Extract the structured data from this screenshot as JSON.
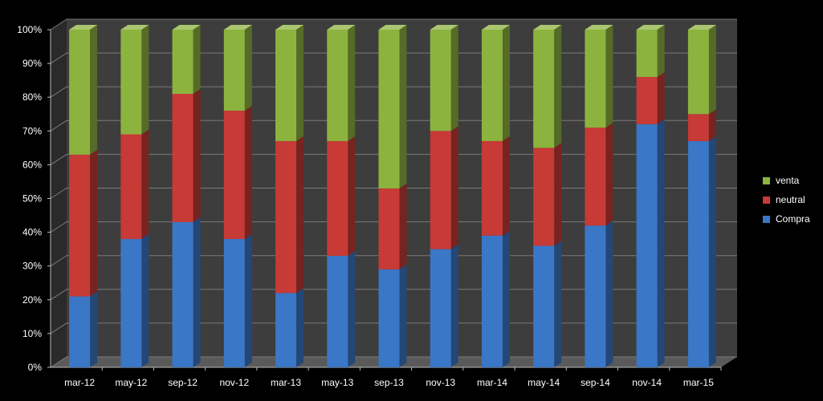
{
  "chart_data": {
    "type": "bar",
    "stacked": true,
    "percent": true,
    "categories": [
      "mar-12",
      "may-12",
      "sep-12",
      "nov-12",
      "mar-13",
      "may-13",
      "sep-13",
      "nov-13",
      "mar-14",
      "may-14",
      "sep-14",
      "nov-14",
      "mar-15"
    ],
    "series": [
      {
        "name": "Compra",
        "color": "#3a77c6",
        "values": [
          21,
          38,
          43,
          38,
          22,
          33,
          29,
          35,
          39,
          36,
          42,
          72,
          67
        ]
      },
      {
        "name": "neutral",
        "color": "#c73a36",
        "values": [
          42,
          31,
          38,
          38,
          45,
          34,
          24,
          35,
          28,
          29,
          29,
          14,
          8
        ]
      },
      {
        "name": "venta",
        "color": "#8db33f",
        "values": [
          37,
          31,
          19,
          24,
          33,
          33,
          47,
          30,
          33,
          35,
          29,
          14,
          25
        ]
      }
    ],
    "yticks": [
      "0%",
      "10%",
      "20%",
      "30%",
      "40%",
      "50%",
      "60%",
      "70%",
      "80%",
      "90%",
      "100%"
    ],
    "ylim": [
      0,
      100
    ],
    "grid": true,
    "legend_position": "right"
  }
}
